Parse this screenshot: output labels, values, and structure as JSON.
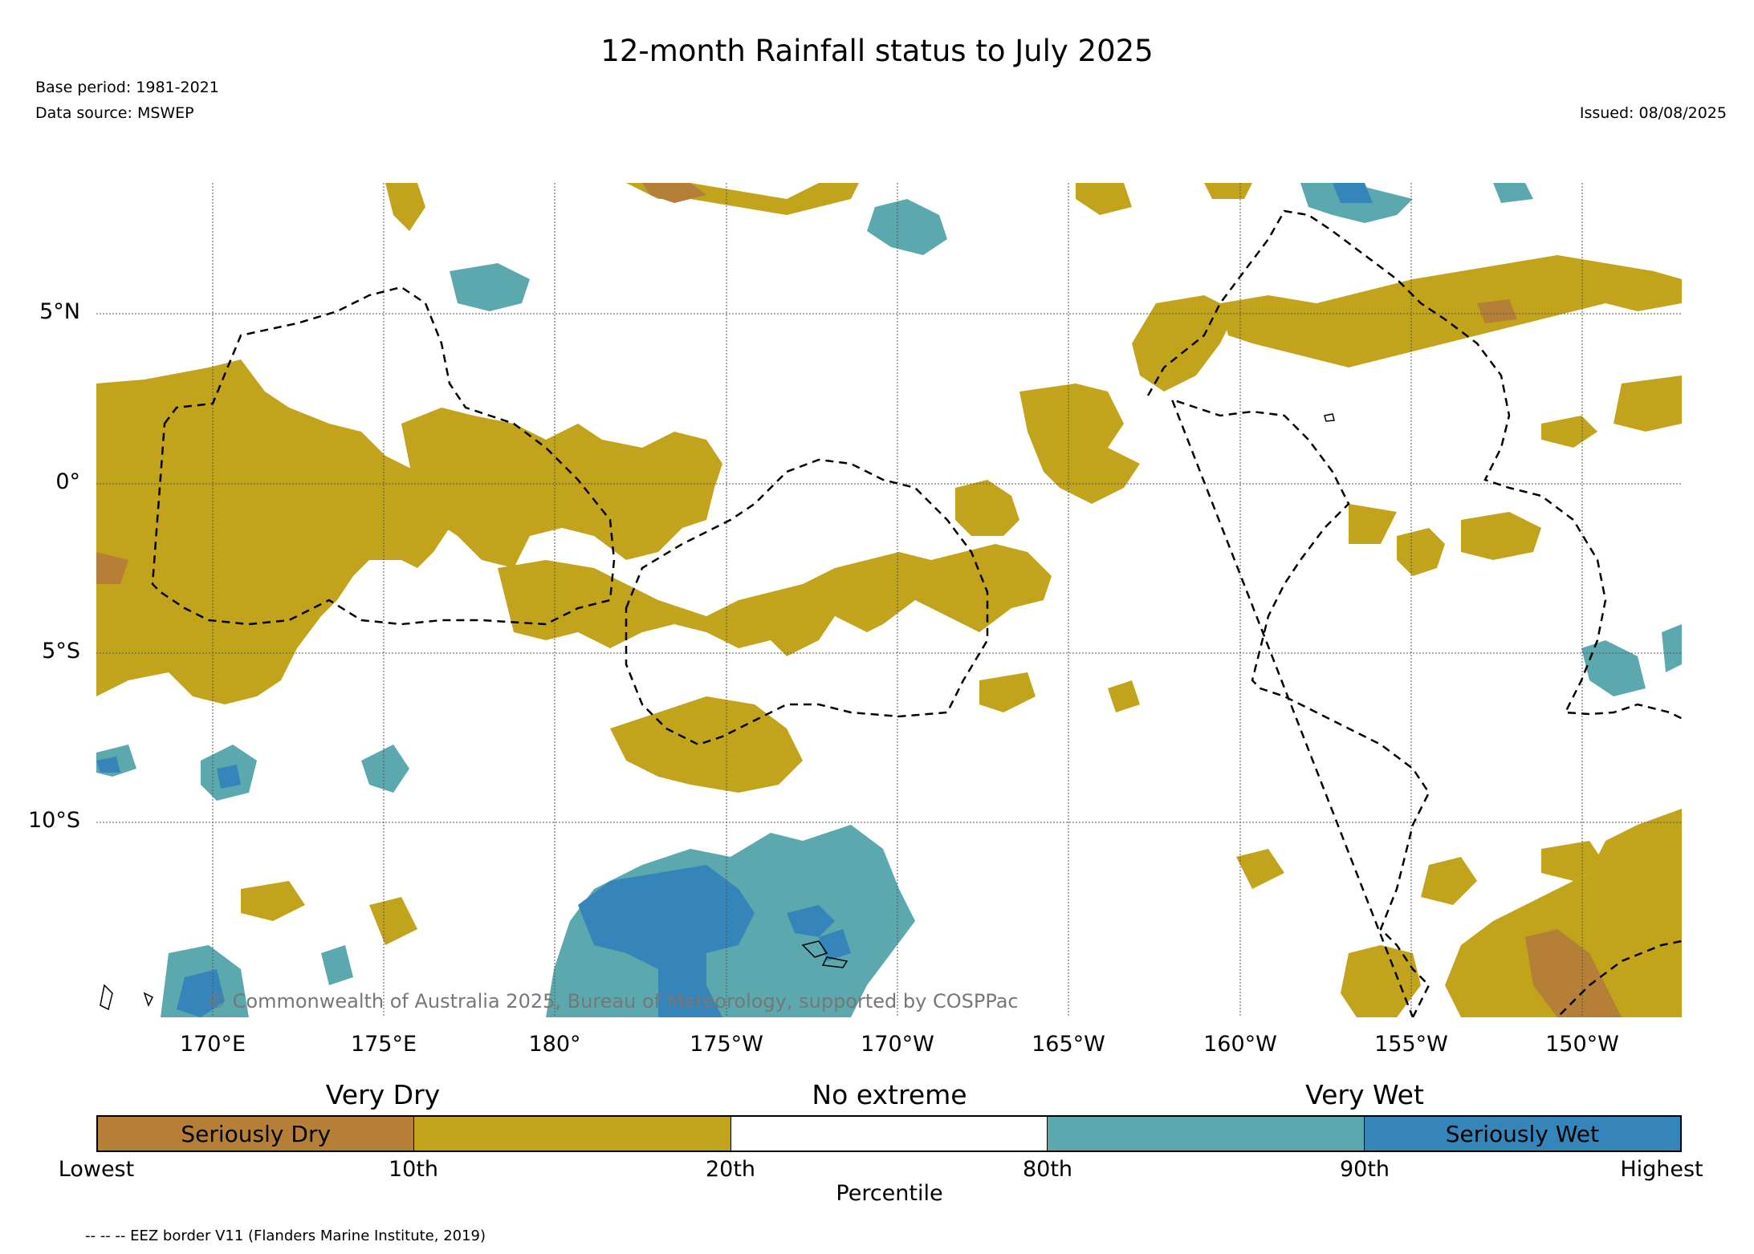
{
  "title": "12-month Rainfall status to July 2025",
  "base_period": "Base period: 1981-2021",
  "data_source": "Data source: MSWEP",
  "issued": "Issued: 08/08/2025",
  "copyright": "© Commonwealth of Australia 2025, Bureau of Meteorology, supported by COSPPac",
  "lat_labels": [
    "5°N",
    "0°",
    "5°S",
    "10°S"
  ],
  "lon_labels": [
    "170°E",
    "175°E",
    "180°",
    "175°W",
    "170°W",
    "165°W",
    "160°W",
    "155°W",
    "150°W"
  ],
  "legend": {
    "categories": [
      "Very Dry",
      "No extreme",
      "Very Wet"
    ],
    "segments": [
      {
        "label": "Seriously Dry",
        "color": "#b57f38"
      },
      {
        "label": "",
        "color": "#c2a31c"
      },
      {
        "label": "",
        "color": "#ffffff"
      },
      {
        "label": "",
        "color": "#5ba9ae"
      },
      {
        "label": "Seriously Wet",
        "color": "#3585bb"
      }
    ],
    "percentiles": [
      "Lowest",
      "10th",
      "20th",
      "80th",
      "90th",
      "Highest"
    ],
    "axis_title": "Percentile"
  },
  "footnote": "-- -- -- EEZ border V11 (Flanders Marine Institute, 2019)",
  "colors": {
    "seriously_dry": "#b57f38",
    "very_dry": "#c2a31c",
    "very_wet": "#5ba9ae",
    "seriously_wet": "#3585bb"
  }
}
